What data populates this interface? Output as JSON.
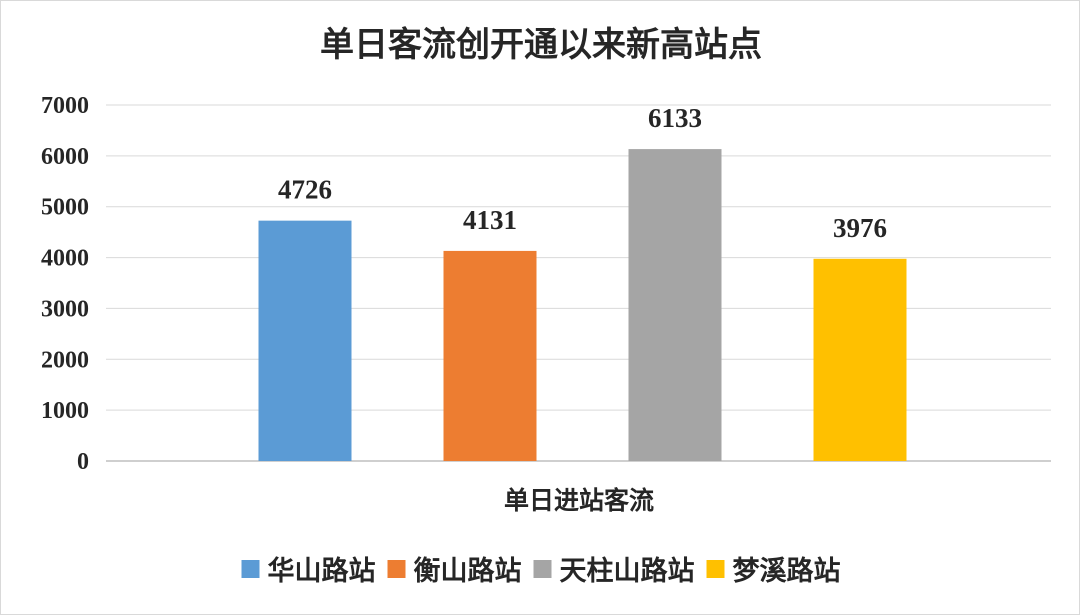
{
  "chart_data": {
    "type": "bar",
    "title": "单日客流创开通以来新高站点",
    "xlabel": "单日进站客流",
    "ylabel": "",
    "ylim": [
      0,
      7000
    ],
    "yticks": [
      "0",
      "1000",
      "2000",
      "3000",
      "4000",
      "5000",
      "6000",
      "7000"
    ],
    "grid": true,
    "legend_position": "bottom",
    "categories": [
      "单日进站客流"
    ],
    "series": [
      {
        "name": "华山路站",
        "values": [
          4726
        ],
        "label": "4726",
        "color": "#5b9bd5"
      },
      {
        "name": "衡山路站",
        "values": [
          4131
        ],
        "label": "4131",
        "color": "#ed7d31"
      },
      {
        "name": "天柱山路站",
        "values": [
          6133
        ],
        "label": "6133",
        "color": "#a5a5a5"
      },
      {
        "name": "梦溪路站",
        "values": [
          3976
        ],
        "label": "3976",
        "color": "#ffc000"
      }
    ]
  }
}
